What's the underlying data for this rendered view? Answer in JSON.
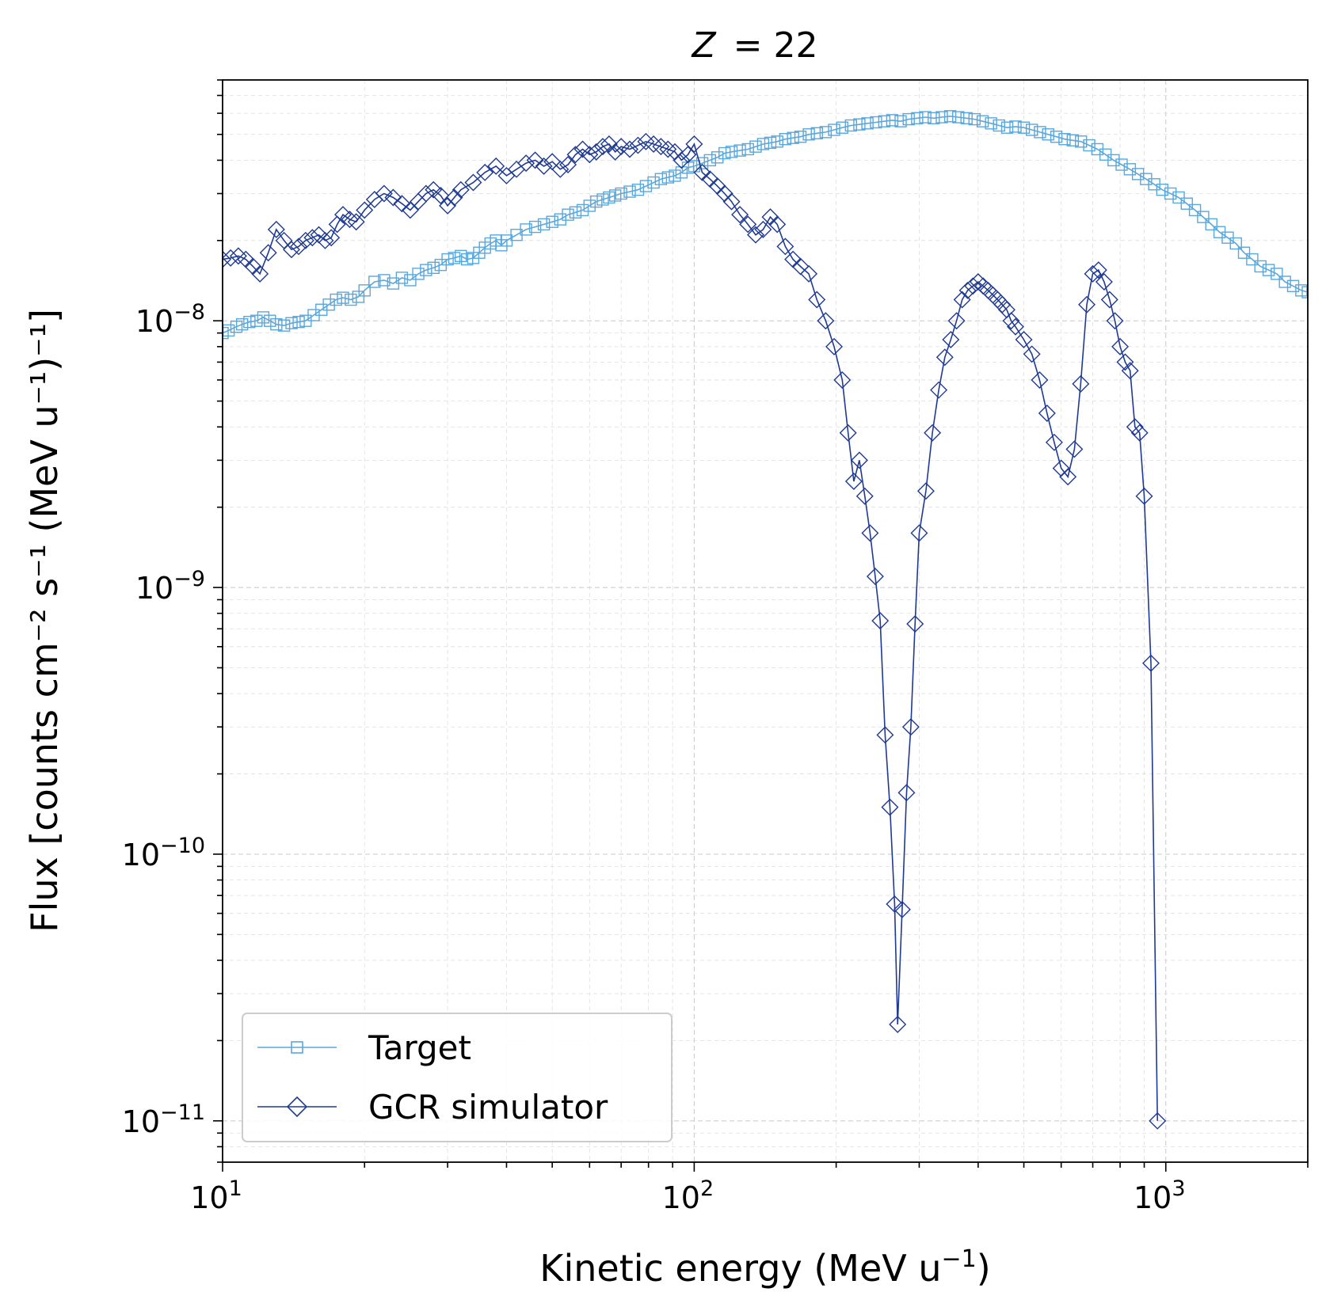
{
  "chart_data": {
    "type": "line",
    "title_var": "Z",
    "title_value": "= 22",
    "xlabel": "Kinetic energy (MeV u",
    "xlabel_sup": "−1",
    "xlabel_end": ")",
    "ylabel": "Flux [counts cm⁻² s⁻¹ (MeV u⁻¹)⁻¹]",
    "xscale": "log",
    "yscale": "log",
    "xlim": [
      10,
      2000
    ],
    "ylim": [
      7e-12,
      8e-08
    ],
    "grid": true,
    "legend_position": "lower-left",
    "x_ticks": [
      {
        "value": 10,
        "base": "10",
        "exp": "1"
      },
      {
        "value": 100,
        "base": "10",
        "exp": "2"
      },
      {
        "value": 1000,
        "base": "10",
        "exp": "3"
      }
    ],
    "y_ticks": [
      {
        "value": 1e-08,
        "base": "10",
        "exp": "−8"
      },
      {
        "value": 1e-09,
        "base": "10",
        "exp": "−9"
      },
      {
        "value": 1e-10,
        "base": "10",
        "exp": "−10"
      },
      {
        "value": 1e-11,
        "base": "10",
        "exp": "−11"
      }
    ],
    "series": [
      {
        "name": "Target",
        "color": "#5aa7dc",
        "marker": "square",
        "points": [
          [
            10,
            9e-09
          ],
          [
            10.3,
            9.2e-09
          ],
          [
            10.7,
            9.5e-09
          ],
          [
            11,
            9.7e-09
          ],
          [
            11.4,
            9.9e-09
          ],
          [
            11.8,
            1e-08
          ],
          [
            12.2,
            1.03e-08
          ],
          [
            12.6,
            1e-08
          ],
          [
            13,
            9.7e-09
          ],
          [
            13.5,
            9.6e-09
          ],
          [
            14,
            9.8e-09
          ],
          [
            14.5,
            9.9e-09
          ],
          [
            15,
            1e-08
          ],
          [
            15.6,
            1.05e-08
          ],
          [
            16.2,
            1.1e-08
          ],
          [
            16.8,
            1.15e-08
          ],
          [
            17.4,
            1.2e-08
          ],
          [
            18,
            1.22e-08
          ],
          [
            18.7,
            1.2e-08
          ],
          [
            19.4,
            1.23e-08
          ],
          [
            20,
            1.3e-08
          ],
          [
            21,
            1.4e-08
          ],
          [
            22,
            1.42e-08
          ],
          [
            23,
            1.38e-08
          ],
          [
            24,
            1.45e-08
          ],
          [
            25,
            1.42e-08
          ],
          [
            26,
            1.5e-08
          ],
          [
            27,
            1.55e-08
          ],
          [
            28,
            1.58e-08
          ],
          [
            29,
            1.62e-08
          ],
          [
            30,
            1.7e-08
          ],
          [
            31,
            1.72e-08
          ],
          [
            32,
            1.75e-08
          ],
          [
            33,
            1.7e-08
          ],
          [
            34,
            1.72e-08
          ],
          [
            35,
            1.8e-08
          ],
          [
            36,
            1.88e-08
          ],
          [
            37,
            1.95e-08
          ],
          [
            38,
            2e-08
          ],
          [
            39,
            1.92e-08
          ],
          [
            40,
            2e-08
          ],
          [
            42,
            2.1e-08
          ],
          [
            44,
            2.2e-08
          ],
          [
            46,
            2.25e-08
          ],
          [
            48,
            2.3e-08
          ],
          [
            50,
            2.35e-08
          ],
          [
            52,
            2.4e-08
          ],
          [
            54,
            2.5e-08
          ],
          [
            56,
            2.55e-08
          ],
          [
            58,
            2.6e-08
          ],
          [
            60,
            2.7e-08
          ],
          [
            62,
            2.8e-08
          ],
          [
            64,
            2.85e-08
          ],
          [
            66,
            2.9e-08
          ],
          [
            68,
            2.95e-08
          ],
          [
            70,
            3e-08
          ],
          [
            73,
            3.05e-08
          ],
          [
            76,
            3.1e-08
          ],
          [
            79,
            3.2e-08
          ],
          [
            82,
            3.3e-08
          ],
          [
            85,
            3.4e-08
          ],
          [
            88,
            3.45e-08
          ],
          [
            91,
            3.5e-08
          ],
          [
            94,
            3.6e-08
          ],
          [
            97,
            3.75e-08
          ],
          [
            100,
            3.8e-08
          ],
          [
            104,
            3.9e-08
          ],
          [
            108,
            4e-08
          ],
          [
            112,
            4.1e-08
          ],
          [
            116,
            4.25e-08
          ],
          [
            120,
            4.3e-08
          ],
          [
            125,
            4.35e-08
          ],
          [
            130,
            4.4e-08
          ],
          [
            135,
            4.5e-08
          ],
          [
            140,
            4.6e-08
          ],
          [
            145,
            4.65e-08
          ],
          [
            150,
            4.7e-08
          ],
          [
            156,
            4.8e-08
          ],
          [
            162,
            4.85e-08
          ],
          [
            168,
            4.9e-08
          ],
          [
            175,
            5e-08
          ],
          [
            182,
            5.05e-08
          ],
          [
            190,
            5.1e-08
          ],
          [
            198,
            5.2e-08
          ],
          [
            206,
            5.3e-08
          ],
          [
            215,
            5.4e-08
          ],
          [
            224,
            5.45e-08
          ],
          [
            233,
            5.5e-08
          ],
          [
            243,
            5.55e-08
          ],
          [
            253,
            5.6e-08
          ],
          [
            263,
            5.65e-08
          ],
          [
            274,
            5.6e-08
          ],
          [
            285,
            5.7e-08
          ],
          [
            297,
            5.75e-08
          ],
          [
            309,
            5.8e-08
          ],
          [
            322,
            5.75e-08
          ],
          [
            335,
            5.8e-08
          ],
          [
            349,
            5.85e-08
          ],
          [
            363,
            5.8e-08
          ],
          [
            378,
            5.75e-08
          ],
          [
            393,
            5.7e-08
          ],
          [
            409,
            5.6e-08
          ],
          [
            426,
            5.5e-08
          ],
          [
            443,
            5.4e-08
          ],
          [
            461,
            5.3e-08
          ],
          [
            480,
            5.35e-08
          ],
          [
            500,
            5.3e-08
          ],
          [
            520,
            5.2e-08
          ],
          [
            541,
            5.1e-08
          ],
          [
            563,
            5e-08
          ],
          [
            586,
            4.9e-08
          ],
          [
            610,
            4.8e-08
          ],
          [
            635,
            4.75e-08
          ],
          [
            661,
            4.7e-08
          ],
          [
            688,
            4.55e-08
          ],
          [
            716,
            4.4e-08
          ],
          [
            745,
            4.2e-08
          ],
          [
            775,
            4e-08
          ],
          [
            806,
            3.85e-08
          ],
          [
            839,
            3.7e-08
          ],
          [
            873,
            3.55e-08
          ],
          [
            908,
            3.4e-08
          ],
          [
            945,
            3.25e-08
          ],
          [
            983,
            3.1e-08
          ],
          [
            1023,
            3e-08
          ],
          [
            1065,
            2.9e-08
          ],
          [
            1108,
            2.75e-08
          ],
          [
            1153,
            2.6e-08
          ],
          [
            1200,
            2.45e-08
          ],
          [
            1249,
            2.3e-08
          ],
          [
            1300,
            2.15e-08
          ],
          [
            1353,
            2.05e-08
          ],
          [
            1408,
            1.95e-08
          ],
          [
            1465,
            1.8e-08
          ],
          [
            1525,
            1.7e-08
          ],
          [
            1587,
            1.6e-08
          ],
          [
            1652,
            1.55e-08
          ],
          [
            1719,
            1.5e-08
          ],
          [
            1789,
            1.4e-08
          ],
          [
            1862,
            1.35e-08
          ],
          [
            1938,
            1.3e-08
          ],
          [
            2000,
            1.28e-08
          ]
        ]
      },
      {
        "name": "GCR simulator",
        "color": "#1f3a93",
        "marker": "diamond",
        "points": [
          [
            10,
            1.7e-08
          ],
          [
            10.4,
            1.72e-08
          ],
          [
            10.8,
            1.75e-08
          ],
          [
            11.2,
            1.7e-08
          ],
          [
            11.6,
            1.6e-08
          ],
          [
            12,
            1.5e-08
          ],
          [
            12.5,
            1.8e-08
          ],
          [
            13,
            2.2e-08
          ],
          [
            13.5,
            2e-08
          ],
          [
            14,
            1.85e-08
          ],
          [
            14.5,
            1.9e-08
          ],
          [
            15,
            2e-08
          ],
          [
            15.5,
            2.05e-08
          ],
          [
            16,
            2.1e-08
          ],
          [
            16.5,
            2e-08
          ],
          [
            17,
            2.05e-08
          ],
          [
            17.5,
            2.3e-08
          ],
          [
            18,
            2.5e-08
          ],
          [
            18.6,
            2.4e-08
          ],
          [
            19.2,
            2.35e-08
          ],
          [
            20,
            2.6e-08
          ],
          [
            21,
            2.85e-08
          ],
          [
            22,
            3e-08
          ],
          [
            23,
            2.9e-08
          ],
          [
            24,
            2.75e-08
          ],
          [
            25,
            2.6e-08
          ],
          [
            26,
            2.8e-08
          ],
          [
            27,
            3e-08
          ],
          [
            28,
            3.1e-08
          ],
          [
            29,
            2.95e-08
          ],
          [
            30,
            2.7e-08
          ],
          [
            31,
            2.9e-08
          ],
          [
            32,
            3.1e-08
          ],
          [
            34,
            3.3e-08
          ],
          [
            36,
            3.6e-08
          ],
          [
            38,
            3.8e-08
          ],
          [
            40,
            3.5e-08
          ],
          [
            42,
            3.7e-08
          ],
          [
            44,
            3.9e-08
          ],
          [
            46,
            4e-08
          ],
          [
            48,
            3.8e-08
          ],
          [
            50,
            3.95e-08
          ],
          [
            52,
            3.7e-08
          ],
          [
            54,
            3.85e-08
          ],
          [
            56,
            4.2e-08
          ],
          [
            58,
            4.4e-08
          ],
          [
            60,
            4.2e-08
          ],
          [
            62,
            4.3e-08
          ],
          [
            64,
            4.5e-08
          ],
          [
            66,
            4.6e-08
          ],
          [
            68,
            4.3e-08
          ],
          [
            70,
            4.5e-08
          ],
          [
            73,
            4.4e-08
          ],
          [
            76,
            4.55e-08
          ],
          [
            79,
            4.7e-08
          ],
          [
            82,
            4.6e-08
          ],
          [
            85,
            4.5e-08
          ],
          [
            88,
            4.4e-08
          ],
          [
            91,
            4.3e-08
          ],
          [
            94,
            4e-08
          ],
          [
            97,
            4.2e-08
          ],
          [
            100,
            4.6e-08
          ],
          [
            104,
            3.6e-08
          ],
          [
            108,
            3.4e-08
          ],
          [
            112,
            3.2e-08
          ],
          [
            116,
            3e-08
          ],
          [
            120,
            2.8e-08
          ],
          [
            125,
            2.5e-08
          ],
          [
            130,
            2.3e-08
          ],
          [
            135,
            2.1e-08
          ],
          [
            140,
            2.2e-08
          ],
          [
            145,
            2.45e-08
          ],
          [
            150,
            2.3e-08
          ],
          [
            156,
            1.9e-08
          ],
          [
            162,
            1.7e-08
          ],
          [
            168,
            1.6e-08
          ],
          [
            175,
            1.5e-08
          ],
          [
            182,
            1.2e-08
          ],
          [
            190,
            1e-08
          ],
          [
            198,
            8e-09
          ],
          [
            206,
            6e-09
          ],
          [
            212,
            3.8e-09
          ],
          [
            218,
            2.5e-09
          ],
          [
            224,
            3e-09
          ],
          [
            230,
            2.2e-09
          ],
          [
            236,
            1.6e-09
          ],
          [
            242,
            1.1e-09
          ],
          [
            248,
            7.5e-10
          ],
          [
            254,
            2.8e-10
          ],
          [
            260,
            1.5e-10
          ],
          [
            266,
            6.5e-11
          ],
          [
            270,
            2.3e-11
          ],
          [
            276,
            6.2e-11
          ],
          [
            282,
            1.7e-10
          ],
          [
            288,
            3e-10
          ],
          [
            294,
            7.3e-10
          ],
          [
            300,
            1.6e-09
          ],
          [
            310,
            2.3e-09
          ],
          [
            320,
            3.8e-09
          ],
          [
            330,
            5.5e-09
          ],
          [
            340,
            7.3e-09
          ],
          [
            350,
            8.5e-09
          ],
          [
            360,
            1e-08
          ],
          [
            370,
            1.2e-08
          ],
          [
            380,
            1.3e-08
          ],
          [
            390,
            1.35e-08
          ],
          [
            400,
            1.4e-08
          ],
          [
            410,
            1.35e-08
          ],
          [
            420,
            1.3e-08
          ],
          [
            430,
            1.25e-08
          ],
          [
            440,
            1.2e-08
          ],
          [
            450,
            1.15e-08
          ],
          [
            460,
            1.1e-08
          ],
          [
            470,
            1e-08
          ],
          [
            480,
            9.5e-09
          ],
          [
            500,
            8.5e-09
          ],
          [
            520,
            7.5e-09
          ],
          [
            540,
            6e-09
          ],
          [
            560,
            4.5e-09
          ],
          [
            580,
            3.5e-09
          ],
          [
            600,
            2.8e-09
          ],
          [
            620,
            2.6e-09
          ],
          [
            640,
            3.3e-09
          ],
          [
            660,
            5.8e-09
          ],
          [
            680,
            1.15e-08
          ],
          [
            700,
            1.5e-08
          ],
          [
            720,
            1.55e-08
          ],
          [
            740,
            1.4e-08
          ],
          [
            760,
            1.2e-08
          ],
          [
            780,
            1e-08
          ],
          [
            800,
            8e-09
          ],
          [
            820,
            7e-09
          ],
          [
            840,
            6.5e-09
          ],
          [
            860,
            4e-09
          ],
          [
            880,
            3.8e-09
          ],
          [
            900,
            2.2e-09
          ],
          [
            930,
            5.2e-10
          ],
          [
            960,
            1e-11
          ]
        ]
      }
    ]
  }
}
